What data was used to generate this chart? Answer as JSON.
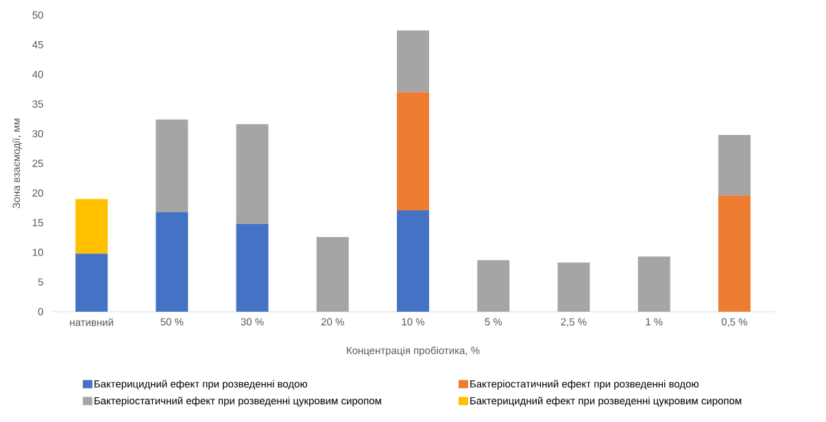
{
  "chart_data": {
    "type": "bar",
    "stacked": true,
    "xlabel": "Концентрація пробіотика, %",
    "ylabel": "Зона взаємодії, мм",
    "categories": [
      "нативний",
      "50 %",
      "30 %",
      "20 %",
      "10 %",
      "5 %",
      "2,5 %",
      "1 %",
      "0,5 %"
    ],
    "series": [
      {
        "name": "Бактерицидний ефект при розведенні водою",
        "color": "#4472c4",
        "values": [
          9.8,
          16.8,
          14.8,
          0,
          17.1,
          0,
          0,
          0,
          0
        ]
      },
      {
        "name": "Бактеріостатичний ефект при розведенні водою",
        "color": "#ed7d31",
        "values": [
          0,
          0,
          0,
          0,
          19.9,
          0,
          0,
          0,
          19.6
        ]
      },
      {
        "name": "Бактеріостатичний ефект при розведенні цукровим сиропом",
        "color": "#a5a5a5",
        "values": [
          0,
          15.6,
          16.8,
          12.6,
          10.4,
          8.7,
          8.3,
          9.3,
          10.2
        ]
      },
      {
        "name": "Бактерицидний ефект при розведенні цукровим сиропом",
        "color": "#ffc000",
        "values": [
          9.2,
          0,
          0,
          0,
          0,
          0,
          0,
          0,
          0
        ]
      }
    ],
    "ylim": [
      0,
      50
    ],
    "yticks": [
      0,
      5,
      10,
      15,
      20,
      25,
      30,
      35,
      40,
      45,
      50
    ],
    "grid": false,
    "legend": "bottom"
  }
}
